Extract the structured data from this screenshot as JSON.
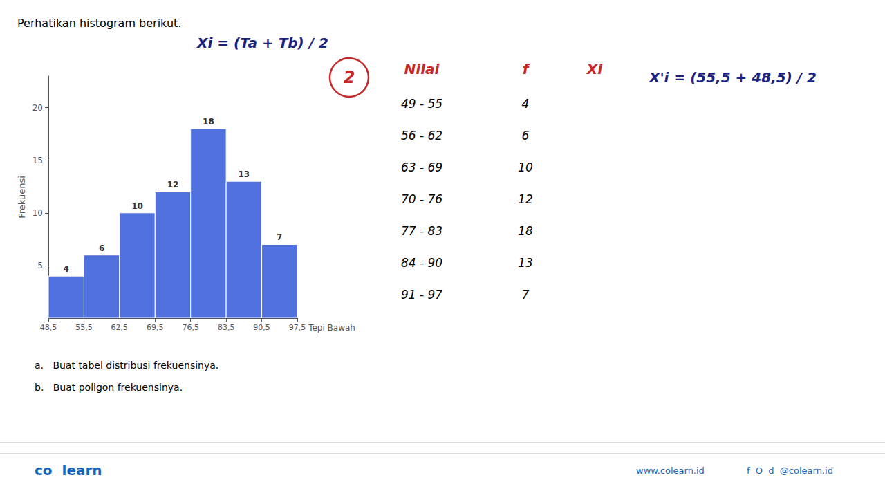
{
  "chart_data": {
    "type": "histogram",
    "title": "Perhatikan histogram berikut.",
    "ylabel": "Frekuensi",
    "xlabel": "Tepi Bawah",
    "bins": [
      {
        "value": 48.5,
        "label": "48,5"
      },
      {
        "value": 55.5,
        "label": "55,5"
      },
      {
        "value": 62.5,
        "label": "62,5"
      },
      {
        "value": 69.5,
        "label": "69,5"
      },
      {
        "value": 76.5,
        "label": "76,5"
      },
      {
        "value": 83.5,
        "label": "83,5"
      },
      {
        "value": 90.5,
        "label": "90,5"
      },
      {
        "value": 97.5,
        "label": "97,5"
      }
    ],
    "values": [
      4,
      6,
      10,
      12,
      18,
      13,
      7
    ],
    "xlim": [
      48.5,
      97.5
    ],
    "ylim": [
      0,
      23
    ],
    "yticks": [
      5,
      10,
      15,
      20
    ],
    "grid": false,
    "data_labels": true,
    "annotations": [
      "Xi = (Ta + Tb) / 2",
      "2",
      "Nilai",
      "f",
      "Xi",
      "49 - 55",
      "4",
      "56 - 62",
      "6",
      "63 - 69",
      "10",
      "70 - 76",
      "12",
      "77 - 83",
      "18",
      "84 - 90",
      "13",
      "91 - 97",
      "7",
      "X'i = (55,5 + 48,5) / 2",
      "a.   Buat tabel distribusi frekuensinya.",
      "b.   Buat poligon frekuensinya.",
      "co  learn",
      "www.colearn.id",
      "f  O  d  @colearn.id"
    ]
  }
}
